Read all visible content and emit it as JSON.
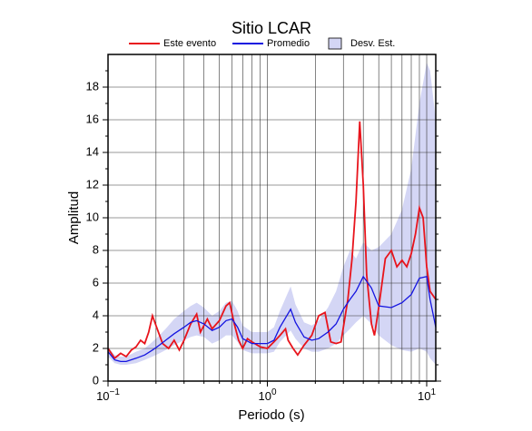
{
  "chart_data": {
    "type": "line",
    "title": "Sitio LCAR",
    "xlabel": "Periodo (s)",
    "ylabel": "Amplitud",
    "xscale": "log",
    "grid": true,
    "legend": "top",
    "xlim": [
      0.1,
      11.4
    ],
    "ylim": [
      0,
      20
    ],
    "xticks": [
      {
        "value": 0.1,
        "label": "10",
        "exponent": "−1"
      },
      {
        "value": 1,
        "label": "10",
        "exponent": "0"
      },
      {
        "value": 10,
        "label": "10",
        "exponent": "1"
      }
    ],
    "xminorticks": [
      0.2,
      0.3,
      0.4,
      0.5,
      0.6,
      0.7,
      0.8,
      0.9,
      2,
      3,
      4,
      5,
      6,
      7,
      8,
      9
    ],
    "yticks": [
      0,
      2,
      4,
      6,
      8,
      10,
      12,
      14,
      16,
      18
    ],
    "yminorticks": [
      1,
      3,
      5,
      7,
      9,
      11,
      13,
      15,
      17,
      19
    ],
    "band": {
      "name": "Desv. Est.",
      "color": "#d4d6f5",
      "x": [
        0.1,
        0.11,
        0.12,
        0.13,
        0.15,
        0.17,
        0.19,
        0.21,
        0.23,
        0.26,
        0.3,
        0.33,
        0.36,
        0.4,
        0.45,
        0.5,
        0.55,
        0.6,
        0.65,
        0.7,
        0.8,
        0.9,
        1.0,
        1.1,
        1.2,
        1.4,
        1.5,
        1.7,
        1.9,
        2.1,
        2.4,
        2.7,
        3.0,
        3.3,
        3.6,
        4.0,
        4.5,
        5.0,
        6.0,
        7.0,
        8.0,
        9.0,
        10,
        10.5,
        11.4
      ],
      "upper": [
        2.1,
        1.6,
        1.5,
        1.5,
        1.8,
        2.0,
        2.4,
        2.8,
        3.2,
        3.8,
        4.3,
        4.6,
        4.8,
        4.5,
        4.0,
        4.3,
        4.8,
        4.9,
        4.3,
        3.4,
        3.0,
        3.0,
        3.0,
        3.3,
        4.3,
        5.8,
        4.7,
        3.6,
        3.4,
        3.7,
        4.5,
        5.5,
        7.0,
        8.0,
        7.5,
        8.5,
        8.0,
        8.2,
        9.0,
        10.5,
        13,
        17,
        19.5,
        19.0,
        16
      ],
      "lower": [
        1.5,
        1.1,
        1.0,
        1.0,
        1.1,
        1.3,
        1.5,
        1.7,
        1.9,
        2.2,
        2.5,
        2.7,
        2.8,
        2.7,
        2.3,
        2.5,
        2.8,
        2.8,
        2.4,
        1.9,
        1.7,
        1.7,
        1.7,
        1.8,
        2.4,
        3.1,
        2.6,
        2.0,
        1.8,
        1.8,
        2.0,
        2.3,
        2.8,
        3.2,
        3.6,
        4.0,
        3.5,
        2.8,
        2.2,
        1.9,
        1.8,
        2.0,
        1.8,
        1.4,
        1.0
      ]
    },
    "series": [
      {
        "name": "Este evento",
        "color": "#e8141c",
        "x": [
          0.1,
          0.11,
          0.12,
          0.13,
          0.14,
          0.15,
          0.16,
          0.17,
          0.18,
          0.19,
          0.2,
          0.22,
          0.24,
          0.26,
          0.28,
          0.3,
          0.33,
          0.36,
          0.38,
          0.42,
          0.45,
          0.5,
          0.55,
          0.58,
          0.62,
          0.66,
          0.7,
          0.75,
          0.8,
          0.9,
          1.0,
          1.1,
          1.2,
          1.3,
          1.35,
          1.45,
          1.55,
          1.7,
          1.9,
          2.1,
          2.3,
          2.5,
          2.7,
          2.9,
          3.2,
          3.4,
          3.6,
          3.8,
          4.0,
          4.2,
          4.5,
          4.7,
          5.0,
          5.5,
          6.0,
          6.5,
          7.0,
          7.5,
          8.0,
          8.5,
          9.0,
          9.5,
          10,
          10.5,
          11.4
        ],
        "values": [
          2.0,
          1.4,
          1.7,
          1.5,
          1.9,
          2.1,
          2.5,
          2.3,
          3.0,
          4.0,
          3.4,
          2.3,
          2.0,
          2.5,
          1.9,
          2.5,
          3.5,
          4.1,
          3.0,
          3.8,
          3.2,
          3.7,
          4.6,
          4.8,
          3.5,
          2.5,
          2.0,
          2.6,
          2.4,
          2.1,
          2.0,
          2.4,
          2.8,
          3.2,
          2.5,
          2.0,
          1.6,
          2.2,
          2.8,
          4.0,
          4.2,
          2.4,
          2.3,
          2.4,
          5.0,
          7.5,
          11,
          15.9,
          12,
          6.5,
          3.5,
          2.8,
          4.5,
          7.5,
          8.0,
          7.0,
          7.4,
          7.0,
          7.8,
          9.0,
          10.6,
          10.0,
          7.0,
          5.5,
          5.0
        ]
      },
      {
        "name": "Promedio",
        "color": "#1414e0",
        "x": [
          0.1,
          0.11,
          0.12,
          0.13,
          0.15,
          0.17,
          0.19,
          0.21,
          0.23,
          0.26,
          0.3,
          0.33,
          0.36,
          0.4,
          0.45,
          0.5,
          0.55,
          0.6,
          0.65,
          0.7,
          0.8,
          0.9,
          1.0,
          1.1,
          1.2,
          1.4,
          1.5,
          1.7,
          1.9,
          2.1,
          2.4,
          2.7,
          3.0,
          3.3,
          3.6,
          4.0,
          4.5,
          5.0,
          6.0,
          7.0,
          8.0,
          9.0,
          10,
          10.5,
          11.4
        ],
        "values": [
          1.8,
          1.3,
          1.2,
          1.2,
          1.4,
          1.6,
          1.9,
          2.2,
          2.5,
          2.9,
          3.3,
          3.6,
          3.7,
          3.5,
          3.1,
          3.3,
          3.7,
          3.8,
          3.3,
          2.6,
          2.3,
          2.3,
          2.3,
          2.5,
          3.3,
          4.4,
          3.6,
          2.7,
          2.5,
          2.6,
          3.0,
          3.5,
          4.4,
          5.0,
          5.5,
          6.4,
          5.7,
          4.6,
          4.5,
          4.8,
          5.3,
          6.3,
          6.4,
          5.0,
          3.3
        ]
      }
    ]
  }
}
